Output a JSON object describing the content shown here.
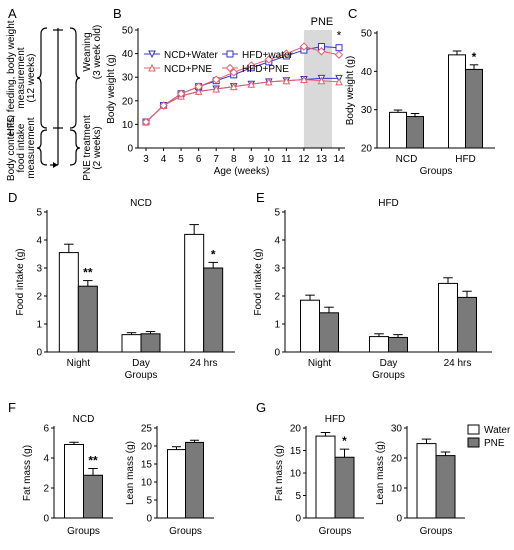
{
  "panels": {
    "A": {
      "letter": "A",
      "left_label_1": "HFD feeding, body weight",
      "left_label_2": "measurement",
      "left_label_3": "(12 weeks)",
      "left_label_4": "Body contents,",
      "left_label_5": "food intake",
      "left_label_6": "measurement",
      "right_label_1": "Weaning",
      "right_label_2": "(3 week old)",
      "right_label_3": "PNE treatment",
      "right_label_4": "(2 weeks)"
    },
    "B": {
      "letter": "B"
    },
    "C": {
      "letter": "C"
    },
    "D": {
      "letter": "D"
    },
    "E": {
      "letter": "E"
    },
    "F": {
      "letter": "F"
    },
    "G": {
      "letter": "G"
    }
  },
  "legend_FG": {
    "water": "Water",
    "pne": "PNE"
  },
  "chart_data": [
    {
      "panel": "B",
      "type": "line",
      "ylabel": "Body weight (g)",
      "xlabel": "Age (weeks)",
      "x": [
        3,
        4,
        5,
        6,
        7,
        8,
        9,
        10,
        11,
        12,
        13,
        14
      ],
      "ylim": [
        0,
        50
      ],
      "yticks": [
        0,
        10,
        20,
        30,
        40,
        50
      ],
      "shaded_region_label": "PNE",
      "shaded_x": [
        12,
        13.6
      ],
      "annotation": "*",
      "series": [
        {
          "name": "NCD+Water",
          "color": "#3333cc",
          "marker": "triangle-down",
          "values": [
            11,
            18,
            22,
            24,
            25,
            26,
            27,
            28,
            28.5,
            29,
            29.5,
            29.5
          ]
        },
        {
          "name": "HFD+water",
          "color": "#3333cc",
          "marker": "square",
          "values": [
            11,
            18,
            23,
            26,
            28.5,
            31,
            34,
            36.5,
            39,
            41.5,
            43,
            42.5
          ]
        },
        {
          "name": "NCD+PNE",
          "color": "#e8606a",
          "marker": "triangle-up",
          "values": [
            11,
            18,
            22,
            24,
            25,
            26,
            27,
            28,
            28.5,
            29,
            28.5,
            28
          ]
        },
        {
          "name": "HFD+PNE",
          "color": "#e8606a",
          "marker": "diamond",
          "values": [
            11,
            18,
            23,
            26,
            29,
            32,
            35,
            37.5,
            40,
            43,
            41,
            39.5
          ]
        }
      ]
    },
    {
      "panel": "C",
      "type": "bar",
      "ylabel": "Body weight (g)",
      "xlabel": "Groups",
      "categories": [
        "NCD",
        "HFD"
      ],
      "ylim": [
        20,
        50
      ],
      "yticks": [
        20,
        30,
        40,
        50
      ],
      "series": [
        {
          "name": "Water",
          "values": [
            29.3,
            44.3
          ],
          "errors": [
            0.6,
            1.0
          ]
        },
        {
          "name": "PNE",
          "values": [
            28.2,
            40.5
          ],
          "errors": [
            0.8,
            1.2
          ]
        }
      ],
      "annotations": [
        {
          "category": "HFD",
          "series": "PNE",
          "text": "*"
        }
      ]
    },
    {
      "panel": "D",
      "type": "bar",
      "title": "NCD",
      "ylabel": "Food intake (g)",
      "xlabel": "Groups",
      "categories": [
        "Night",
        "Day",
        "24 hrs"
      ],
      "ylim": [
        0,
        5
      ],
      "yticks": [
        0,
        1,
        2,
        3,
        4,
        5
      ],
      "series": [
        {
          "name": "Water",
          "values": [
            3.55,
            0.62,
            4.2
          ],
          "errors": [
            0.3,
            0.07,
            0.35
          ]
        },
        {
          "name": "PNE",
          "values": [
            2.35,
            0.65,
            3.0
          ],
          "errors": [
            0.2,
            0.08,
            0.2
          ]
        }
      ],
      "annotations": [
        {
          "category": "Night",
          "series": "PNE",
          "text": "**"
        },
        {
          "category": "24 hrs",
          "series": "PNE",
          "text": "*"
        }
      ]
    },
    {
      "panel": "E",
      "type": "bar",
      "title": "HFD",
      "ylabel": "Food intake (g)",
      "xlabel": "Groups",
      "categories": [
        "Night",
        "Day",
        "24 hrs"
      ],
      "ylim": [
        0,
        5
      ],
      "yticks": [
        0,
        1,
        2,
        3,
        4,
        5
      ],
      "series": [
        {
          "name": "Water",
          "values": [
            1.85,
            0.55,
            2.45
          ],
          "errors": [
            0.18,
            0.1,
            0.2
          ]
        },
        {
          "name": "PNE",
          "values": [
            1.4,
            0.52,
            1.95
          ],
          "errors": [
            0.2,
            0.1,
            0.22
          ]
        }
      ],
      "annotations": []
    },
    {
      "panel": "F-fat",
      "type": "bar",
      "title": "NCD",
      "ylabel": "Fat mass (g)",
      "xlabel": "Groups",
      "categories": [
        ""
      ],
      "ylim": [
        0,
        6
      ],
      "yticks": [
        0,
        2,
        4,
        6
      ],
      "series": [
        {
          "name": "Water",
          "values": [
            4.9
          ],
          "errors": [
            0.15
          ]
        },
        {
          "name": "PNE",
          "values": [
            2.85
          ],
          "errors": [
            0.45
          ]
        }
      ],
      "annotations": [
        {
          "category": "",
          "series": "PNE",
          "text": "**"
        }
      ]
    },
    {
      "panel": "F-lean",
      "type": "bar",
      "ylabel": "Lean mass (g)",
      "xlabel": "Groups",
      "categories": [
        ""
      ],
      "ylim": [
        0,
        25
      ],
      "yticks": [
        0,
        5,
        10,
        15,
        20,
        25
      ],
      "series": [
        {
          "name": "Water",
          "values": [
            19.0
          ],
          "errors": [
            0.8
          ]
        },
        {
          "name": "PNE",
          "values": [
            21.0
          ],
          "errors": [
            0.6
          ]
        }
      ],
      "annotations": []
    },
    {
      "panel": "G-fat",
      "type": "bar",
      "title": "HFD",
      "ylabel": "Fat mass (g)",
      "xlabel": "Groups",
      "categories": [
        ""
      ],
      "ylim": [
        0,
        20
      ],
      "yticks": [
        0,
        5,
        10,
        15,
        20
      ],
      "series": [
        {
          "name": "Water",
          "values": [
            18.2
          ],
          "errors": [
            0.8
          ]
        },
        {
          "name": "PNE",
          "values": [
            13.5
          ],
          "errors": [
            1.8
          ]
        }
      ],
      "annotations": [
        {
          "category": "",
          "series": "PNE",
          "text": "*"
        }
      ]
    },
    {
      "panel": "G-lean",
      "type": "bar",
      "ylabel": "Lean mass (g)",
      "xlabel": "Groups",
      "categories": [
        ""
      ],
      "ylim": [
        0,
        30
      ],
      "yticks": [
        0,
        10,
        20,
        30
      ],
      "series": [
        {
          "name": "Water",
          "values": [
            24.8
          ],
          "errors": [
            1.5
          ]
        },
        {
          "name": "PNE",
          "values": [
            20.8
          ],
          "errors": [
            1.2
          ]
        }
      ],
      "annotations": []
    }
  ]
}
